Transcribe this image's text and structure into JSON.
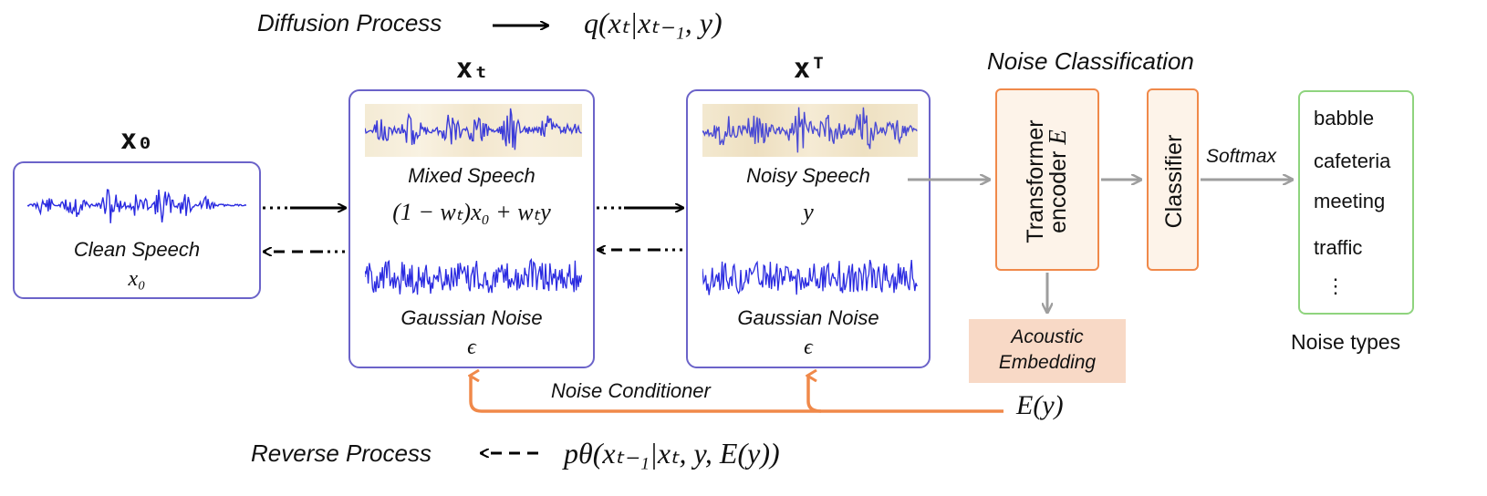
{
  "diffusion": {
    "label": "Diffusion Process",
    "formula": "q(xₜ|xₜ₋₁, y)"
  },
  "reverse": {
    "label": "Reverse Process",
    "formula": "pθ(xₜ₋₁|xₜ, y, E(y))"
  },
  "x0": {
    "symbol": "x₀",
    "title": "Clean Speech",
    "var": "x₀"
  },
  "xt": {
    "symbol": "xₜ",
    "title": "Mixed Speech",
    "formula": "(1 − wₜ)x₀ + wₜy",
    "noise_title": "Gaussian Noise",
    "noise_var": "ϵ"
  },
  "xT": {
    "symbol": "xᵀ",
    "title": "Noisy Speech",
    "var": "y",
    "noise_title": "Gaussian Noise",
    "noise_var": "ϵ"
  },
  "noise_classification": {
    "title": "Noise Classification",
    "encoder_label": "Transformer",
    "encoder_label2": "encoder",
    "encoder_symbol": "E",
    "classifier_label": "Classifier",
    "softmax_label": "Softmax",
    "embedding_line1": "Acoustic",
    "embedding_line2": "Embedding",
    "embedding_formula": "E(y)"
  },
  "conditioner_label": "Noise Conditioner",
  "noise_types": {
    "items": [
      "babble",
      "cafeteria",
      "meeting",
      "traffic",
      "⋮"
    ],
    "caption": "Noise types"
  },
  "colors": {
    "box_border": "#6b63c9",
    "orange": "#f0894a",
    "gray_arrow": "#9e9e9e",
    "wave_blue": "#2a2ae0",
    "green_border": "#8fd47e"
  }
}
